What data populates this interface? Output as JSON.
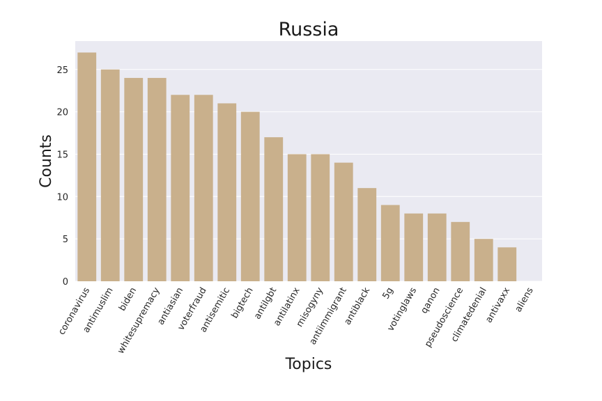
{
  "chart_data": {
    "type": "bar",
    "title": "Russia",
    "xlabel": "Topics",
    "ylabel": "Counts",
    "categories": [
      "coronavirus",
      "antimuslim",
      "biden",
      "whitesupremacy",
      "antiasian",
      "voterfraud",
      "antisemitic",
      "bigtech",
      "antilgbt",
      "antilatinx",
      "misogyny",
      "antiimmigrant",
      "antiblack",
      "5g",
      "votinglaws",
      "qanon",
      "pseudoscience",
      "climatedenial",
      "antivaxx",
      "aliens"
    ],
    "values": [
      27,
      25,
      24,
      24,
      22,
      22,
      21,
      20,
      17,
      15,
      15,
      14,
      11,
      9,
      8,
      8,
      7,
      5,
      4,
      0
    ],
    "yticks": [
      0,
      5,
      10,
      15,
      20,
      25
    ],
    "ylim": [
      0,
      28.35
    ],
    "grid": true,
    "colors": {
      "bar": "#c9b08c",
      "plot_background": "#eaeaf2",
      "grid": "#ffffff"
    }
  }
}
